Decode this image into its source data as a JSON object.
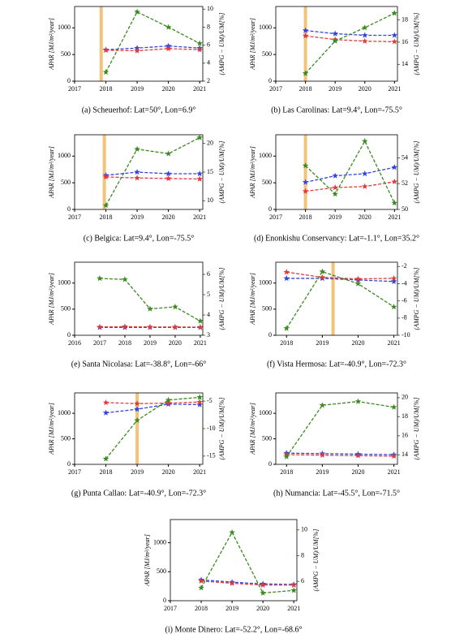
{
  "chart_data": [
    {
      "type": "line",
      "caption": "(a)  Scheuerhof: Lat=50°, Lon=6.9°",
      "ylabel": "APAR [MJ/m²/year]",
      "y2label": "(AMPG − UM)/UM[%]",
      "x": [
        2018,
        2019,
        2020,
        2021
      ],
      "xlim": [
        2017,
        2021.1
      ],
      "xticks": [
        2017,
        2018,
        2019,
        2020,
        2021
      ],
      "ylim": [
        0,
        1400
      ],
      "yticks": [
        0,
        500,
        1000
      ],
      "y2lim": [
        2,
        10.3
      ],
      "y2ticks": [
        2,
        4,
        6,
        8,
        10
      ],
      "vline": 2017.85,
      "vline_color": "#f5c27a",
      "series": [
        {
          "color": "#3344dd",
          "values": [
            590,
            620,
            660,
            620
          ]
        },
        {
          "color": "#e03b3b",
          "values": [
            580,
            570,
            610,
            590
          ]
        },
        {
          "color": "#3a8a1f",
          "axis": "y2",
          "values": [
            3.0,
            9.7,
            8.0,
            6.2
          ]
        }
      ]
    },
    {
      "type": "line",
      "caption": "(b)  Las Carolinas: Lat=9.4°, Lon=-75.5°",
      "ylabel": "APAR [MJ/m²/year]",
      "y2label": "(AMPG − UM)/UM[%]",
      "x": [
        2018,
        2019,
        2020,
        2021
      ],
      "xlim": [
        2017,
        2021.1
      ],
      "xticks": [
        2017,
        2018,
        2019,
        2020,
        2021
      ],
      "ylim": [
        0,
        1400
      ],
      "yticks": [
        0,
        500,
        1000
      ],
      "y2lim": [
        12.5,
        19.2
      ],
      "y2ticks": [
        14,
        16,
        18
      ],
      "vline": 2018,
      "vline_color": "#f5c27a",
      "series": [
        {
          "color": "#3344dd",
          "values": [
            950,
            890,
            860,
            860
          ]
        },
        {
          "color": "#e03b3b",
          "values": [
            850,
            780,
            750,
            740
          ]
        },
        {
          "color": "#3a8a1f",
          "axis": "y2",
          "values": [
            13.2,
            16.1,
            17.3,
            18.6
          ]
        }
      ]
    },
    {
      "type": "line",
      "caption": "(c)  Belgica: Lat=9.4°, Lon=-75.5°",
      "ylabel": "APAR [MJ/m²/year]",
      "y2label": "(AMPG − UM)/UM[%]",
      "x": [
        2018,
        2019,
        2020,
        2021
      ],
      "xlim": [
        2017,
        2021.1
      ],
      "xticks": [
        2017,
        2018,
        2019,
        2020,
        2021
      ],
      "ylim": [
        0,
        1400
      ],
      "yticks": [
        0,
        500,
        1000
      ],
      "y2lim": [
        8.5,
        21.5
      ],
      "y2ticks": [
        10,
        15,
        20
      ],
      "vline": 2017.95,
      "vline_color": "#f5c27a",
      "series": [
        {
          "color": "#3344dd",
          "values": [
            640,
            700,
            670,
            670
          ]
        },
        {
          "color": "#e03b3b",
          "values": [
            610,
            590,
            580,
            570
          ]
        },
        {
          "color": "#3a8a1f",
          "axis": "y2",
          "values": [
            9.2,
            19,
            18.2,
            21
          ]
        }
      ]
    },
    {
      "type": "line",
      "caption": "(d)  Enonkishu Conservancy: Lat=-1.1°, Lon=35.2°",
      "ylabel": "APAR [MJ/m²/year]",
      "y2label": "(AMPG − UM)/UM[%]",
      "x": [
        2018,
        2019,
        2020,
        2021
      ],
      "xlim": [
        2017,
        2021.1
      ],
      "xticks": [
        2017,
        2018,
        2019,
        2020,
        2021
      ],
      "ylim": [
        0,
        1400
      ],
      "yticks": [
        0,
        500,
        1000
      ],
      "y2lim": [
        50,
        55.8
      ],
      "y2ticks": [
        50,
        52,
        54
      ],
      "vline": 2018,
      "vline_color": "#f5c27a",
      "series": [
        {
          "color": "#3344dd",
          "values": [
            510,
            630,
            670,
            790
          ]
        },
        {
          "color": "#e03b3b",
          "values": [
            340,
            410,
            430,
            520
          ]
        },
        {
          "color": "#3a8a1f",
          "axis": "y2",
          "values": [
            53.4,
            51.2,
            55.3,
            50.5
          ]
        }
      ]
    },
    {
      "type": "line",
      "caption": "(e)  Santa Nicolasa: Lat=-38.8°, Lon=-66°",
      "ylabel": "APAR [MJ/m²/year]",
      "y2label": "(AMPG − UM)/UM[%]",
      "x": [
        2017,
        2018,
        2019,
        2020,
        2021
      ],
      "xlim": [
        2016,
        2021.1
      ],
      "xticks": [
        2016,
        2017,
        2018,
        2019,
        2020,
        2021
      ],
      "ylim": [
        0,
        1400
      ],
      "yticks": [
        0,
        500,
        1000
      ],
      "y2lim": [
        3,
        6.6
      ],
      "y2ticks": [
        3,
        4,
        5,
        6
      ],
      "series": [
        {
          "color": "#3344dd",
          "values": [
            150,
            150,
            150,
            150,
            150
          ]
        },
        {
          "color": "#e03b3b",
          "values": [
            160,
            165,
            160,
            160,
            155
          ]
        },
        {
          "color": "#3a8a1f",
          "axis": "y2",
          "values": [
            5.8,
            5.75,
            4.3,
            4.4,
            3.7
          ]
        }
      ]
    },
    {
      "type": "line",
      "caption": "(f)  Vista Hermosa: Lat=-40.9°, Lon=-72.3°",
      "ylabel": "APAR [MJ/m²/year]",
      "y2label": "(AMPG − UM)/UM[%]",
      "x": [
        2018,
        2019,
        2020,
        2021
      ],
      "xlim": [
        2017.7,
        2021.1
      ],
      "xticks": [
        2018,
        2019,
        2020,
        2021
      ],
      "ylim": [
        0,
        1400
      ],
      "yticks": [
        0,
        500,
        1000
      ],
      "y2lim": [
        -10,
        -1.5
      ],
      "y2ticks": [
        -10,
        -8,
        -6,
        -4,
        -2
      ],
      "vline": 2019.3,
      "vline_color": "#f5c27a",
      "series": [
        {
          "color": "#3344dd",
          "values": [
            1090,
            1090,
            1060,
            1030
          ]
        },
        {
          "color": "#e03b3b",
          "values": [
            1210,
            1110,
            1080,
            1090
          ]
        },
        {
          "color": "#3a8a1f",
          "axis": "y2",
          "values": [
            -9.2,
            -2.6,
            -4.0,
            -6.7
          ]
        }
      ]
    },
    {
      "type": "line",
      "caption": "(g)  Punta Callao: Lat=-40.9°, Lon=-72.3°",
      "ylabel": "APAR [MJ/m²/year]",
      "y2label": "(AMPG − UM)/UM[%]",
      "x": [
        2018,
        2019,
        2020,
        2021
      ],
      "xlim": [
        2017,
        2021.1
      ],
      "xticks": [
        2017,
        2018,
        2019,
        2020,
        2021
      ],
      "ylim": [
        0,
        1400
      ],
      "yticks": [
        0,
        500,
        1000
      ],
      "y2lim": [
        -16.5,
        -3.5
      ],
      "y2ticks": [
        -15,
        -10,
        -5
      ],
      "vline": 2019,
      "vline_color": "#f5c27a",
      "series": [
        {
          "color": "#3344dd",
          "values": [
            1010,
            1080,
            1180,
            1170
          ]
        },
        {
          "color": "#e03b3b",
          "values": [
            1210,
            1190,
            1200,
            1220
          ]
        },
        {
          "color": "#3a8a1f",
          "axis": "y2",
          "values": [
            -15.5,
            -8.5,
            -4.8,
            -4.3
          ]
        }
      ]
    },
    {
      "type": "line",
      "caption": "(h)  Numancia: Lat=-45.5°, Lon=-71.5°",
      "ylabel": "APAR [MJ/m²/year]",
      "y2label": "(AMPG − UM)/UM[%]",
      "x": [
        2018,
        2019,
        2020,
        2021
      ],
      "xlim": [
        2017.7,
        2021.1
      ],
      "xticks": [
        2018,
        2019,
        2020,
        2021
      ],
      "ylim": [
        0,
        1400
      ],
      "yticks": [
        0,
        500,
        1000
      ],
      "y2lim": [
        13,
        20.5
      ],
      "y2ticks": [
        14,
        16,
        18,
        20
      ],
      "series": [
        {
          "color": "#3344dd",
          "values": [
            220,
            210,
            200,
            190
          ]
        },
        {
          "color": "#e03b3b",
          "values": [
            190,
            180,
            170,
            160
          ]
        },
        {
          "color": "#3a8a1f",
          "axis": "y2",
          "values": [
            13.8,
            19.2,
            19.6,
            19
          ]
        }
      ]
    },
    {
      "type": "line",
      "caption": "(i)  Monte Dinero: Lat=-52.2°, Lon=-68.6°",
      "ylabel": "APAR [MJ/m²/year]",
      "y2label": "(AMPG − UM)/UM[%]",
      "x": [
        2018,
        2019,
        2020,
        2021
      ],
      "xlim": [
        2017,
        2021.1
      ],
      "xticks": [
        2017,
        2018,
        2019,
        2020,
        2021
      ],
      "ylim": [
        0,
        1400
      ],
      "yticks": [
        0,
        500,
        1000
      ],
      "y2lim": [
        4.5,
        10.8
      ],
      "y2ticks": [
        6,
        8,
        10
      ],
      "series": [
        {
          "color": "#3344dd",
          "values": [
            360,
            320,
            290,
            280
          ]
        },
        {
          "color": "#e03b3b",
          "values": [
            340,
            300,
            270,
            270
          ]
        },
        {
          "color": "#3a8a1f",
          "axis": "y2",
          "values": [
            5.5,
            9.8,
            5.1,
            5.3
          ]
        }
      ]
    }
  ]
}
